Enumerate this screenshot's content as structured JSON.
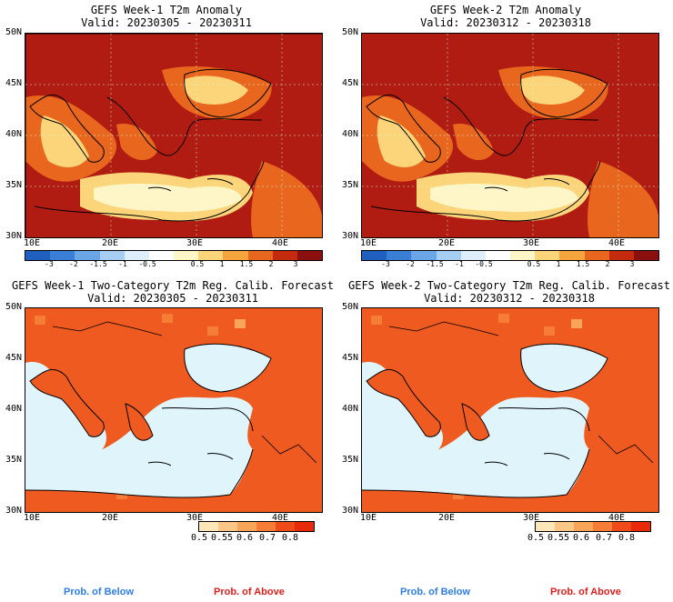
{
  "panels": [
    {
      "title": "GEFS Week-1 T2m Anomaly",
      "valid": "Valid: 20230305 - 20230311"
    },
    {
      "title": "GEFS Week-2 T2m Anomaly",
      "valid": "Valid: 20230312 - 20230318"
    },
    {
      "title": "GEFS Week-1 Two-Category T2m Reg. Calib. Forecast",
      "valid": "Valid: 20230305 - 20230311"
    },
    {
      "title": "GEFS Week-2 Two-Category T2m Reg. Calib. Forecast",
      "valid": "Valid: 20230312 - 20230318"
    }
  ],
  "lat_labels": [
    "50N",
    "45N",
    "40N",
    "35N",
    "30N"
  ],
  "lon_labels": [
    "10E",
    "20E",
    "30E",
    "40E"
  ],
  "anomaly_colorbar": {
    "ticks": [
      "-3",
      "-2",
      "-1.5",
      "-1",
      "-0.5",
      "0.5",
      "1",
      "1.5",
      "2",
      "3"
    ],
    "colors": [
      "#1f5fbf",
      "#3a7fd5",
      "#6aa6e6",
      "#a6cef2",
      "#dfeefb",
      "#ffffff",
      "#fff6c8",
      "#fcd57a",
      "#f5a53d",
      "#e8661d",
      "#c42a0e",
      "#8c0f0f"
    ]
  },
  "prob_colorbar": {
    "ticks": [
      "0.5",
      "0.55",
      "0.6",
      "0.7",
      "0.8"
    ],
    "colors": [
      "#fde7b8",
      "#fbc787",
      "#f8a55a",
      "#f57d36",
      "#ee4a1a",
      "#e82a0a"
    ]
  },
  "legend": {
    "below": "Prob. of Below",
    "above": "Prob. of Above",
    "below_color": "#2f7de0",
    "above_color": "#d91e1e"
  },
  "colors": {
    "sea_probability": "#dff4fb",
    "land_probability": "#ee5a1f",
    "anomaly_high": "#b01c12",
    "anomaly_mid": "#e8661d",
    "anomaly_low": "#fcd57a",
    "anomaly_min": "#fff6c8"
  }
}
